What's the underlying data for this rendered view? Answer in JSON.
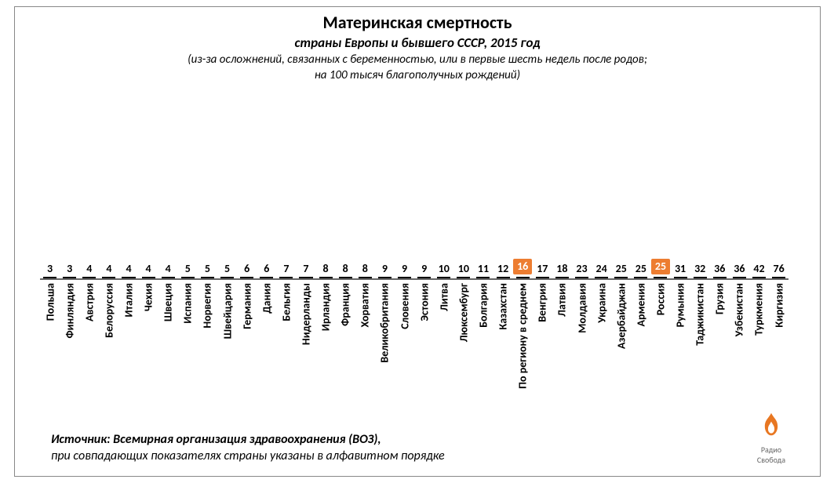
{
  "chart": {
    "type": "bar",
    "title": "Материнская смертность",
    "subtitle": "страны Европы и бывшего СССР, 2015 год",
    "note_line1": "(из-за осложнений, связанных с беременностью, или в первые шесть недель после родов;",
    "note_line2": "на 100 тысяч благополучных рождений)",
    "ylim_max": 80,
    "bar_color": "#c05824",
    "bar_border_color": "#000000",
    "label_color": "#000000",
    "highlight_bg": "#ed7d31",
    "highlight_fg": "#ffffff",
    "background_color": "#ffffff",
    "axis_color": "#666666",
    "bar_width_ratio": 0.68,
    "value_fontsize": 14,
    "category_fontsize": 14,
    "title_fontsize": 22,
    "subtitle_fontsize": 17,
    "note_fontsize": 15,
    "data": [
      {
        "label": "Польша",
        "value": 3,
        "highlight": false
      },
      {
        "label": "Финляндия",
        "value": 3,
        "highlight": false
      },
      {
        "label": "Австрия",
        "value": 4,
        "highlight": false
      },
      {
        "label": "Белоруссия",
        "value": 4,
        "highlight": false
      },
      {
        "label": "Италия",
        "value": 4,
        "highlight": false
      },
      {
        "label": "Чехия",
        "value": 4,
        "highlight": false
      },
      {
        "label": "Швеция",
        "value": 4,
        "highlight": false
      },
      {
        "label": "Испания",
        "value": 5,
        "highlight": false
      },
      {
        "label": "Норвегия",
        "value": 5,
        "highlight": false
      },
      {
        "label": "Швейцария",
        "value": 5,
        "highlight": false
      },
      {
        "label": "Германия",
        "value": 6,
        "highlight": false
      },
      {
        "label": "Дания",
        "value": 6,
        "highlight": false
      },
      {
        "label": "Бельгия",
        "value": 7,
        "highlight": false
      },
      {
        "label": "Нидерланды",
        "value": 7,
        "highlight": false
      },
      {
        "label": "Ирландия",
        "value": 8,
        "highlight": false
      },
      {
        "label": "Франция",
        "value": 8,
        "highlight": false
      },
      {
        "label": "Хорватия",
        "value": 8,
        "highlight": false
      },
      {
        "label": "Великобритания",
        "value": 9,
        "highlight": false
      },
      {
        "label": "Словения",
        "value": 9,
        "highlight": false
      },
      {
        "label": "Эстония",
        "value": 9,
        "highlight": false
      },
      {
        "label": "Литва",
        "value": 10,
        "highlight": false
      },
      {
        "label": "Люксембург",
        "value": 10,
        "highlight": false
      },
      {
        "label": "Болгария",
        "value": 11,
        "highlight": false
      },
      {
        "label": "Казахстан",
        "value": 12,
        "highlight": false
      },
      {
        "label": "По региону в среднем",
        "value": 16,
        "highlight": true
      },
      {
        "label": "Венгрия",
        "value": 17,
        "highlight": false
      },
      {
        "label": "Латвия",
        "value": 18,
        "highlight": false
      },
      {
        "label": "Молдавия",
        "value": 23,
        "highlight": false
      },
      {
        "label": "Украина",
        "value": 24,
        "highlight": false
      },
      {
        "label": "Азербайджан",
        "value": 25,
        "highlight": false
      },
      {
        "label": "Армения",
        "value": 25,
        "highlight": false
      },
      {
        "label": "Россия",
        "value": 25,
        "highlight": true
      },
      {
        "label": "Румыния",
        "value": 31,
        "highlight": false
      },
      {
        "label": "Таджикистан",
        "value": 32,
        "highlight": false
      },
      {
        "label": "Грузия",
        "value": 36,
        "highlight": false
      },
      {
        "label": "Узбекистан",
        "value": 36,
        "highlight": false
      },
      {
        "label": "Туркмения",
        "value": 42,
        "highlight": false
      },
      {
        "label": "Киргизия",
        "value": 76,
        "highlight": false
      }
    ]
  },
  "footer": {
    "source_line1": "Источник: Всемирная организация здравоохранения (ВОЗ),",
    "source_line2": "при совпадающих показателях страны указаны в алфавитном порядке"
  },
  "logo": {
    "name": "Радио Свобода",
    "text": "Радио\nСвобода",
    "icon_color": "#e87722"
  }
}
